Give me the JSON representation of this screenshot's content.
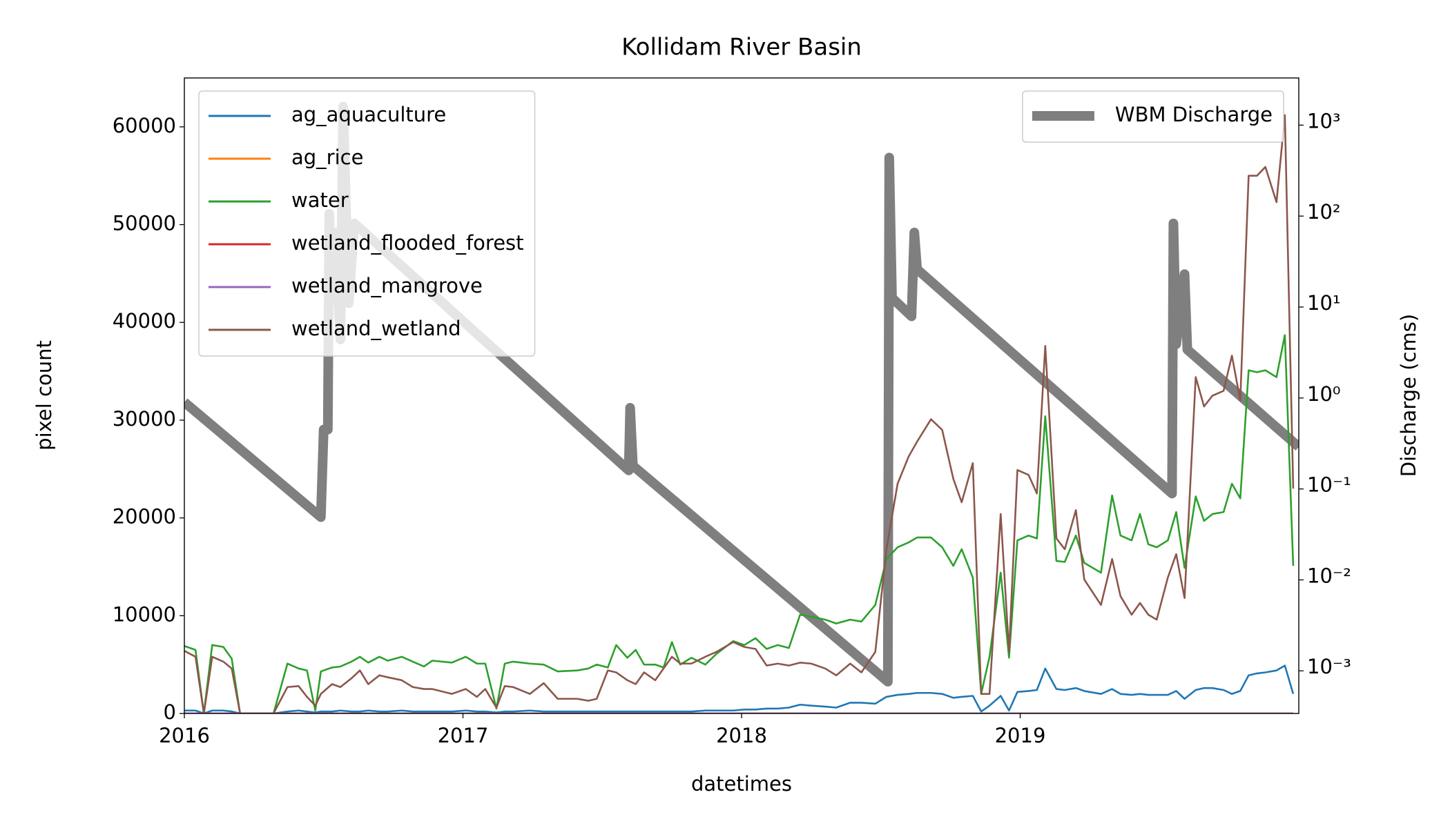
{
  "chart_data": {
    "type": "line",
    "title": "Kollidam River Basin",
    "xlabel": "datetimes",
    "ylabel": "pixel count",
    "y2label": "Discharge (cms)",
    "xlim": [
      2016,
      2020
    ],
    "xticks": [
      2016,
      2017,
      2018,
      2019
    ],
    "ylim": [
      0,
      65000
    ],
    "yticks": [
      0,
      10000,
      20000,
      30000,
      40000,
      50000,
      60000
    ],
    "y2scale": "log",
    "y2lim": [
      0.00034,
      3300
    ],
    "y2ticks": [
      {
        "value": 0.001,
        "label": "10⁻³"
      },
      {
        "value": 0.01,
        "label": "10⁻²"
      },
      {
        "value": 0.1,
        "label": "10⁻¹"
      },
      {
        "value": 1,
        "label": "10⁰"
      },
      {
        "value": 10,
        "label": "10¹"
      },
      {
        "value": 100,
        "label": "10²"
      },
      {
        "value": 1000,
        "label": "10³"
      }
    ],
    "legend_loc": "upper left",
    "legend2_loc": "upper right",
    "x": [
      2016,
      2016.04,
      2016.07,
      2016.1,
      2016.14,
      2016.17,
      2016.2,
      2016.32,
      2016.37,
      2016.41,
      2016.44,
      2016.47,
      2016.49,
      2016.53,
      2016.56,
      2016.6,
      2016.63,
      2016.66,
      2016.7,
      2016.73,
      2016.78,
      2016.82,
      2016.86,
      2016.89,
      2016.96,
      2017.01,
      2017.05,
      2017.08,
      2017.12,
      2017.15,
      2017.18,
      2017.24,
      2017.29,
      2017.34,
      2017.41,
      2017.45,
      2017.48,
      2017.52,
      2017.55,
      2017.59,
      2017.62,
      2017.65,
      2017.69,
      2017.72,
      2017.75,
      2017.78,
      2017.82,
      2017.87,
      2017.91,
      2017.97,
      2018.01,
      2018.05,
      2018.09,
      2018.13,
      2018.17,
      2018.21,
      2018.25,
      2018.3,
      2018.34,
      2018.39,
      2018.43,
      2018.48,
      2018.52,
      2018.56,
      2018.6,
      2018.63,
      2018.68,
      2018.72,
      2018.76,
      2018.79,
      2018.83,
      2018.86,
      2018.89,
      2018.93,
      2018.96,
      2018.99,
      2019.03,
      2019.06,
      2019.09,
      2019.13,
      2019.16,
      2019.2,
      2019.23,
      2019.29,
      2019.33,
      2019.36,
      2019.4,
      2019.43,
      2019.46,
      2019.49,
      2019.53,
      2019.56,
      2019.59,
      2019.63,
      2019.66,
      2019.69,
      2019.73,
      2019.76,
      2019.79,
      2019.82,
      2019.85,
      2019.88,
      2019.92,
      2019.95,
      2019.98
    ],
    "series": [
      {
        "name": "ag_aquaculture",
        "color": "#1f77b4",
        "values": [
          300,
          300,
          0,
          300,
          300,
          200,
          0,
          0,
          200,
          300,
          200,
          100,
          200,
          200,
          300,
          200,
          200,
          300,
          200,
          200,
          300,
          200,
          200,
          200,
          200,
          300,
          200,
          200,
          100,
          200,
          200,
          300,
          200,
          200,
          200,
          200,
          200,
          200,
          200,
          200,
          200,
          200,
          200,
          200,
          200,
          200,
          200,
          300,
          300,
          300,
          400,
          400,
          500,
          500,
          600,
          900,
          800,
          700,
          600,
          1100,
          1100,
          1000,
          1700,
          1900,
          2000,
          2100,
          2100,
          2000,
          1600,
          1700,
          1800,
          200,
          800,
          1800,
          300,
          2200,
          2300,
          2400,
          4600,
          2500,
          2400,
          2600,
          2300,
          2000,
          2500,
          2000,
          1900,
          2000,
          1900,
          1900,
          1900,
          2300,
          1500,
          2400,
          2600,
          2600,
          2400,
          2000,
          2300,
          3900,
          4100,
          4200,
          4400,
          4900,
          2000
        ]
      },
      {
        "name": "ag_rice",
        "color": "#ff7f0e",
        "values": [
          0,
          0,
          0,
          0,
          0,
          0,
          0,
          0,
          0,
          0,
          0,
          0,
          0,
          0,
          0,
          0,
          0,
          0,
          0,
          0,
          0,
          0,
          0,
          0,
          0,
          0,
          0,
          0,
          0,
          0,
          0,
          0,
          0,
          0,
          0,
          0,
          0,
          0,
          0,
          0,
          0,
          0,
          0,
          0,
          0,
          0,
          0,
          0,
          0,
          0,
          0,
          0,
          0,
          0,
          0,
          0,
          0,
          0,
          0,
          0,
          0,
          0,
          0,
          0,
          0,
          0,
          0,
          0,
          0,
          0,
          0,
          0,
          0,
          0,
          0,
          0,
          0,
          0,
          0,
          0,
          0,
          0,
          0,
          0,
          0,
          0,
          0,
          0,
          0,
          0,
          0,
          0,
          0,
          0,
          0,
          0,
          0,
          0,
          0,
          0,
          0,
          0,
          0,
          0,
          0
        ]
      },
      {
        "name": "water",
        "color": "#2ca02c",
        "values": [
          6900,
          6500,
          0,
          7000,
          6800,
          5600,
          0,
          0,
          5100,
          4600,
          4400,
          300,
          4300,
          4700,
          4800,
          5300,
          5800,
          5200,
          5800,
          5400,
          5800,
          5300,
          4800,
          5400,
          5200,
          5800,
          5100,
          5100,
          500,
          5100,
          5300,
          5100,
          5000,
          4300,
          4400,
          4600,
          5000,
          4700,
          7000,
          5700,
          6500,
          5000,
          5000,
          4700,
          7300,
          5000,
          5700,
          5000,
          6100,
          7400,
          7000,
          7700,
          6600,
          7000,
          6700,
          10100,
          9900,
          9600,
          9200,
          9600,
          9400,
          11100,
          15800,
          17000,
          17500,
          18000,
          18000,
          17000,
          15100,
          16800,
          13900,
          2000,
          5800,
          14400,
          5700,
          17700,
          18200,
          17900,
          30400,
          15600,
          15500,
          18200,
          15400,
          14400,
          22300,
          18200,
          17700,
          20400,
          17300,
          17000,
          17700,
          20600,
          14900,
          22200,
          19700,
          20400,
          20600,
          23500,
          22000,
          35100,
          34900,
          35100,
          34400,
          38700,
          15100
        ]
      },
      {
        "name": "wetland_flooded_forest",
        "color": "#d62728",
        "values": [
          0,
          0,
          0,
          0,
          0,
          0,
          0,
          0,
          0,
          0,
          0,
          0,
          0,
          0,
          0,
          0,
          0,
          0,
          0,
          0,
          0,
          0,
          0,
          0,
          0,
          0,
          0,
          0,
          0,
          0,
          0,
          0,
          0,
          0,
          0,
          0,
          0,
          0,
          0,
          0,
          0,
          0,
          0,
          0,
          0,
          0,
          0,
          0,
          0,
          0,
          0,
          0,
          0,
          0,
          0,
          0,
          0,
          0,
          0,
          0,
          0,
          0,
          0,
          0,
          0,
          0,
          0,
          0,
          0,
          0,
          0,
          0,
          0,
          0,
          0,
          0,
          0,
          0,
          0,
          0,
          0,
          0,
          0,
          0,
          0,
          0,
          0,
          0,
          0,
          0,
          0,
          0,
          0,
          0,
          0,
          0,
          0,
          0,
          0,
          0,
          0,
          0,
          0,
          0,
          0
        ]
      },
      {
        "name": "wetland_mangrove",
        "color": "#9467bd",
        "values": [
          0,
          0,
          0,
          0,
          0,
          0,
          0,
          0,
          0,
          0,
          0,
          0,
          0,
          0,
          0,
          0,
          0,
          0,
          0,
          0,
          0,
          0,
          0,
          0,
          0,
          0,
          0,
          0,
          0,
          0,
          0,
          0,
          0,
          0,
          0,
          0,
          0,
          0,
          0,
          0,
          0,
          0,
          0,
          0,
          0,
          0,
          0,
          0,
          0,
          0,
          0,
          0,
          0,
          0,
          0,
          0,
          0,
          0,
          0,
          0,
          0,
          0,
          0,
          0,
          0,
          0,
          0,
          0,
          0,
          0,
          0,
          0,
          0,
          0,
          0,
          0,
          0,
          0,
          0,
          0,
          0,
          0,
          0,
          0,
          0,
          0,
          0,
          0,
          0,
          0,
          0,
          0,
          0,
          0,
          0,
          0,
          0,
          0,
          0,
          0,
          0,
          0,
          0,
          0,
          0
        ]
      },
      {
        "name": "wetland_wetland",
        "color": "#8c564b",
        "values": [
          6400,
          5800,
          0,
          5800,
          5300,
          4600,
          0,
          0,
          2700,
          2800,
          1700,
          800,
          2000,
          3000,
          2700,
          3600,
          4400,
          3000,
          3900,
          3700,
          3400,
          2700,
          2500,
          2500,
          2000,
          2500,
          1700,
          2500,
          600,
          2800,
          2700,
          2000,
          3100,
          1500,
          1500,
          1300,
          1500,
          4400,
          4200,
          3400,
          3000,
          4200,
          3400,
          4600,
          5800,
          5100,
          5100,
          5800,
          6300,
          7300,
          6800,
          6600,
          4900,
          5100,
          4900,
          5200,
          5100,
          4600,
          3900,
          5100,
          4200,
          6300,
          16800,
          23500,
          26300,
          27800,
          30100,
          29000,
          24000,
          21600,
          25600,
          2000,
          2000,
          20400,
          6300,
          24900,
          24400,
          22500,
          37600,
          17900,
          16800,
          20800,
          13700,
          11100,
          15800,
          12000,
          10100,
          11300,
          10100,
          9600,
          13900,
          16300,
          11800,
          34400,
          31400,
          32500,
          33000,
          36600,
          32000,
          55000,
          55000,
          55900,
          52300,
          61200,
          23000
        ]
      },
      {
        "name": "WBM Discharge",
        "color": "#7f7f7f",
        "axis": "y2",
        "x": [
          2016,
          2016.49,
          2016.5,
          2016.515,
          2016.52,
          2016.53,
          2016.54,
          2016.56,
          2016.57,
          2016.59,
          2016.61,
          2017.595,
          2017.6,
          2017.61,
          2018.525,
          2018.53,
          2018.54,
          2018.61,
          2018.62,
          2018.63,
          2019.545,
          2019.55,
          2019.56,
          2019.59,
          2019.6,
          2020
        ],
        "values": [
          0.9,
          0.049,
          0.45,
          0.45,
          106,
          12.6,
          66,
          4.4,
          1600,
          11,
          83,
          0.16,
          0.78,
          0.18,
          0.00076,
          440,
          12.6,
          7.9,
          66,
          26,
          0.089,
          83,
          3.9,
          23,
          3.4,
          0.29
        ]
      }
    ]
  }
}
